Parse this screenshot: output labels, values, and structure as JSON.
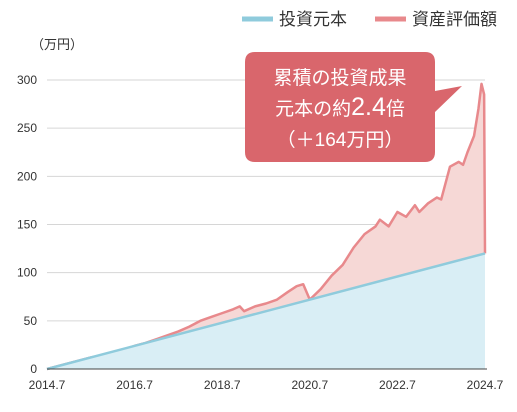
{
  "chart_data": {
    "type": "area",
    "unit_label": "（万円）",
    "x_ticks": [
      "2014.7",
      "2016.7",
      "2018.7",
      "2020.7",
      "2022.7",
      "2024.7"
    ],
    "y_ticks": [
      0,
      50,
      100,
      150,
      200,
      250,
      300
    ],
    "ylim": [
      0,
      300
    ],
    "x_range": [
      2014.5,
      2024.5
    ],
    "grid": "horizontal",
    "legend_position": "top-right",
    "series": [
      {
        "name": "投資元本",
        "color": "#8fcbdc",
        "fill": "#d9eef5",
        "points": [
          [
            2014.5,
            0
          ],
          [
            2024.5,
            120
          ]
        ]
      },
      {
        "name": "資産評価額",
        "color": "#e8898c",
        "fill": "#f6d8d6",
        "points": [
          [
            2014.5,
            0
          ],
          [
            2014.75,
            3
          ],
          [
            2015.0,
            6
          ],
          [
            2015.25,
            9
          ],
          [
            2015.5,
            12
          ],
          [
            2015.75,
            14
          ],
          [
            2016.0,
            17
          ],
          [
            2016.25,
            20
          ],
          [
            2016.5,
            24
          ],
          [
            2016.75,
            27
          ],
          [
            2017.0,
            31
          ],
          [
            2017.25,
            35
          ],
          [
            2017.5,
            39
          ],
          [
            2017.75,
            44
          ],
          [
            2018.0,
            50
          ],
          [
            2018.25,
            54
          ],
          [
            2018.5,
            58
          ],
          [
            2018.75,
            62
          ],
          [
            2018.9,
            65
          ],
          [
            2019.0,
            60
          ],
          [
            2019.25,
            65
          ],
          [
            2019.5,
            68
          ],
          [
            2019.75,
            72
          ],
          [
            2020.0,
            80
          ],
          [
            2020.2,
            86
          ],
          [
            2020.35,
            88
          ],
          [
            2020.5,
            72
          ],
          [
            2020.75,
            83
          ],
          [
            2021.0,
            97
          ],
          [
            2021.25,
            108
          ],
          [
            2021.5,
            126
          ],
          [
            2021.75,
            140
          ],
          [
            2022.0,
            148
          ],
          [
            2022.1,
            155
          ],
          [
            2022.3,
            148
          ],
          [
            2022.5,
            163
          ],
          [
            2022.7,
            158
          ],
          [
            2022.9,
            170
          ],
          [
            2023.0,
            163
          ],
          [
            2023.2,
            172
          ],
          [
            2023.4,
            178
          ],
          [
            2023.5,
            176
          ],
          [
            2023.7,
            210
          ],
          [
            2023.9,
            215
          ],
          [
            2024.0,
            212
          ],
          [
            2024.1,
            225
          ],
          [
            2024.25,
            242
          ],
          [
            2024.35,
            270
          ],
          [
            2024.42,
            296
          ],
          [
            2024.48,
            285
          ],
          [
            2024.5,
            120
          ]
        ]
      }
    ],
    "annotation": {
      "line1": "累積の投資成果",
      "line2_prefix": "元本の約",
      "line2_value": "2.4",
      "line2_suffix": "倍",
      "line3": "（＋164万円）",
      "color": "#d9666c"
    }
  }
}
